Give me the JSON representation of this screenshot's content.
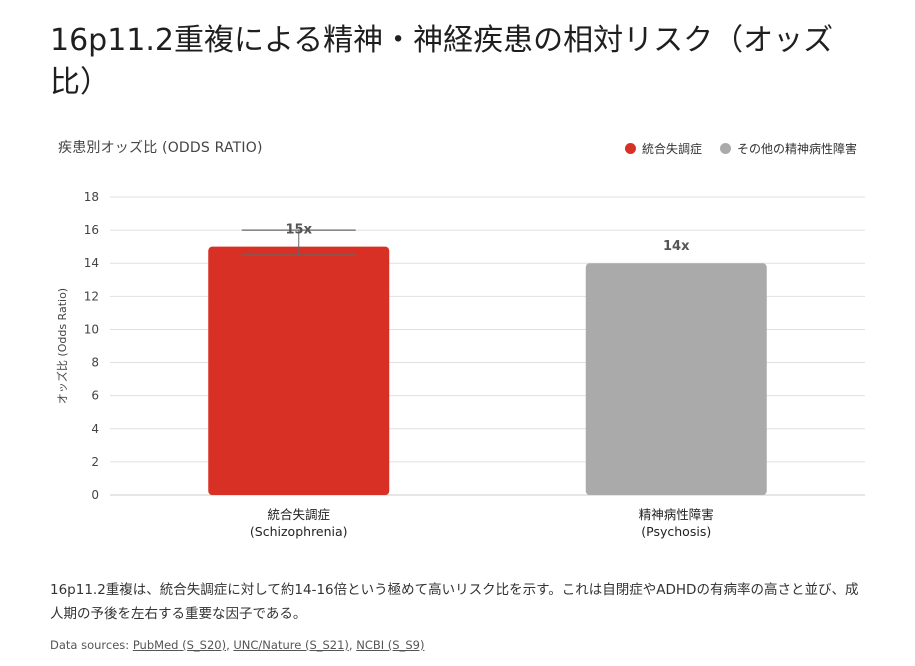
{
  "page": {
    "title": "16p11.2重複による精神・神経疾患の相対リスク（オッズ比）",
    "summary": "16p11.2重複は、統合失調症に対して約14-16倍という極めて高いリスク比を示す。これは自閉症やADHDの有病率の高さと並び、成人期の予後を左右する重要な因子である。",
    "sources_prefix": "Data sources:",
    "sources": [
      {
        "label": "PubMed (S_S20)"
      },
      {
        "label": "UNC/Nature (S_S21)"
      },
      {
        "label": "NCBI (S_S9)"
      }
    ]
  },
  "chart_data": {
    "type": "bar",
    "title": "疾患別オッズ比 (ODDS RATIO)",
    "ylabel": "オッズ比 (Odds Ratio)",
    "xlabel": "",
    "ylim": [
      0,
      18
    ],
    "yticks": [
      0,
      2,
      4,
      6,
      8,
      10,
      12,
      14,
      16,
      18
    ],
    "grid": true,
    "legend_position": "top-right",
    "categories": [
      {
        "name": "統合失調症",
        "sub": "(Schizophrenia)"
      },
      {
        "name": "精神病性障害",
        "sub": "(Psychosis)"
      }
    ],
    "values": [
      15,
      14
    ],
    "data_labels": [
      "15x",
      "14x"
    ],
    "error_bars": [
      {
        "low": 14.5,
        "high": 16
      },
      null
    ],
    "colors": [
      "#d93025",
      "#aaaaaa"
    ],
    "legend": [
      {
        "label": "統合失調症",
        "color": "#d93025"
      },
      {
        "label": "その他の精神病性障害",
        "color": "#aaaaaa"
      }
    ]
  }
}
